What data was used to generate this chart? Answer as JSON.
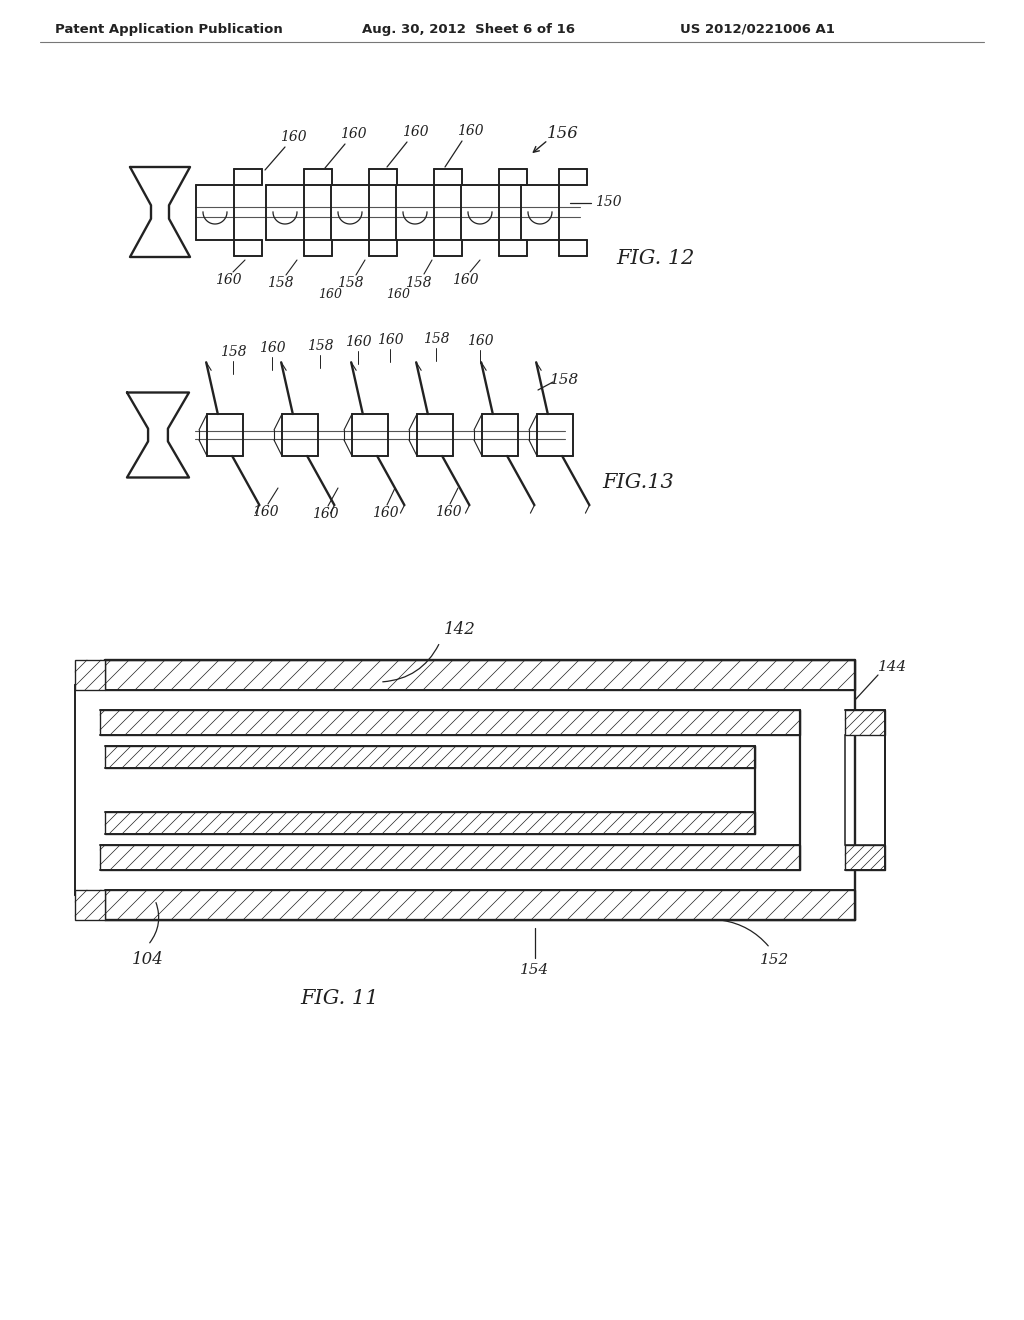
{
  "background_color": "#ffffff",
  "header_text": "Patent Application Publication",
  "header_date": "Aug. 30, 2012  Sheet 6 of 16",
  "header_patent": "US 2012/0221006 A1",
  "fig12_label": "FIG. 12",
  "fig13_label": "FIG.13",
  "fig11_label": "FIG. 11",
  "line_color": "#222222",
  "lw": 1.4
}
